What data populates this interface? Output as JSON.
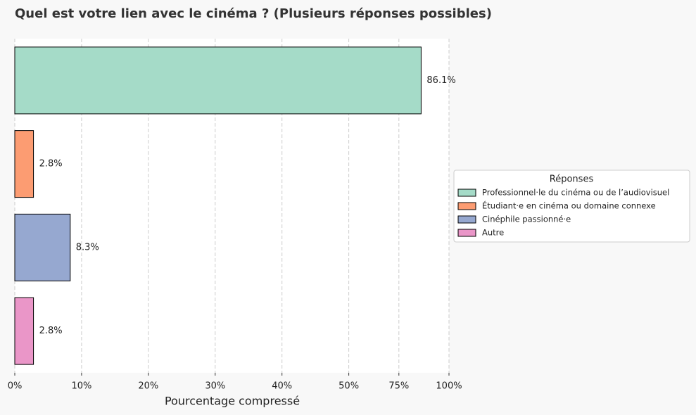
{
  "chart_data": {
    "type": "barh",
    "title": "Quel est votre lien avec le cinéma ? (Plusieurs réponses possibles)",
    "x_label": "Pourcentage compressé",
    "legend_title": "Réponses",
    "legend_position": "right",
    "categories": [
      "Professionnel·le du cinéma ou de l’audiovisuel",
      "Étudiant·e en cinéma ou domaine connexe",
      "Cinéphile passionné·e",
      "Autre"
    ],
    "values": [
      86.1,
      2.8,
      8.3,
      2.8
    ],
    "value_labels": [
      "86.1%",
      "2.8%",
      "8.3%",
      "2.8%"
    ],
    "colors": [
      "#a5dbc8",
      "#fc9c72",
      "#96a8d0",
      "#ea96c8"
    ],
    "xlim": [
      0,
      100
    ],
    "xscale": {
      "type": "compressed",
      "break": 50,
      "factor": 0.3
    },
    "xticks": [
      {
        "value": 0,
        "label": "0%"
      },
      {
        "value": 10,
        "label": "10%"
      },
      {
        "value": 20,
        "label": "20%"
      },
      {
        "value": 30,
        "label": "30%"
      },
      {
        "value": 40,
        "label": "40%"
      },
      {
        "value": 50,
        "label": "50%"
      },
      {
        "value": 75,
        "label": "75%"
      },
      {
        "value": 100,
        "label": "100%"
      }
    ],
    "grid": true
  }
}
